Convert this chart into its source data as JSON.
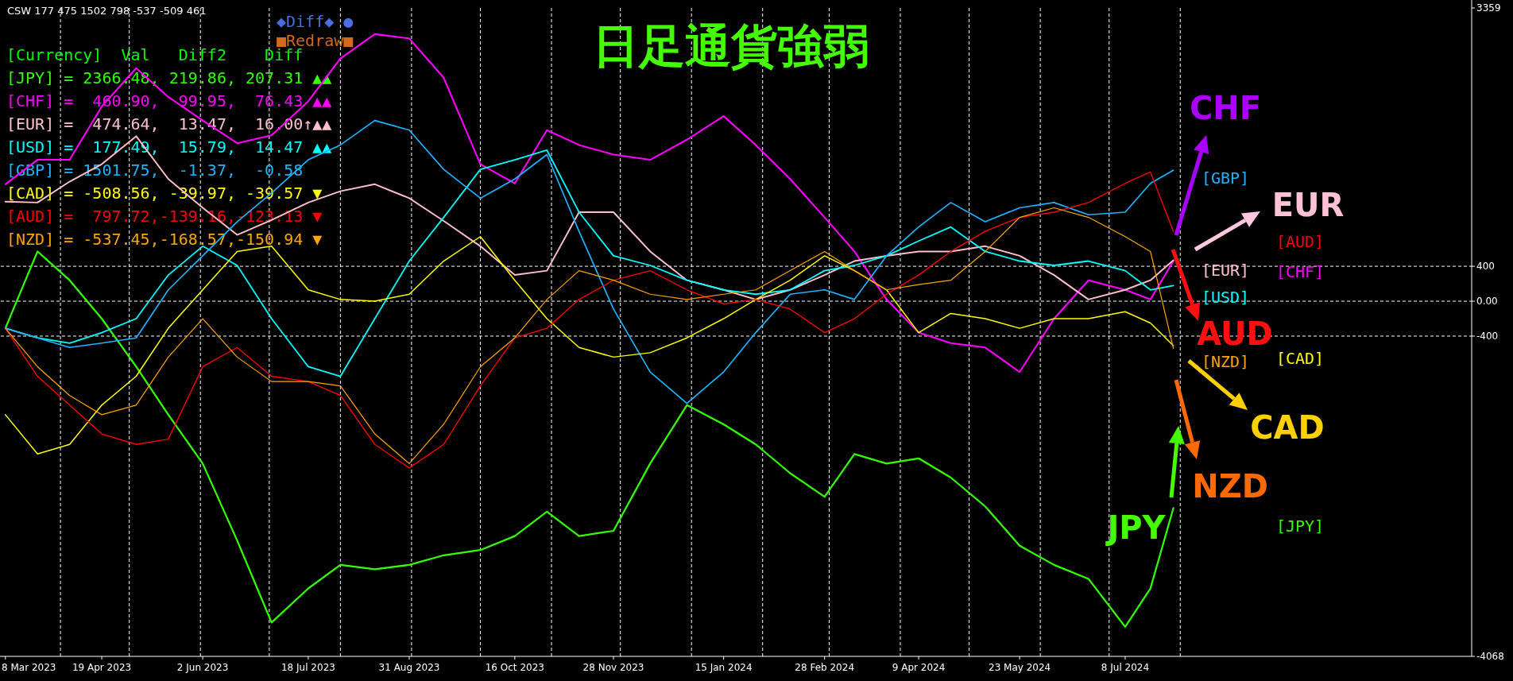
{
  "chart_data": {
    "type": "line",
    "title": "日足通貨強弱",
    "legend_title": "[Currency]  Val   Diff2    Diff",
    "legend": "top left",
    "grid": "y",
    "line_style": "solid",
    "marker": "none",
    "x": [
      "2023-03-08",
      "2023-03-22",
      "2023-04-05",
      "2023-04-19",
      "2023-05-04",
      "2023-05-18",
      "2023-06-02",
      "2023-06-17",
      "2023-07-02",
      "2023-07-18",
      "2023-08-01",
      "2023-08-16",
      "2023-08-31",
      "2023-09-15",
      "2023-10-01",
      "2023-10-16",
      "2023-10-30",
      "2023-11-13",
      "2023-11-28",
      "2023-12-14",
      "2023-12-30",
      "2024-01-15",
      "2024-01-29",
      "2024-02-13",
      "2024-02-28",
      "2024-03-12",
      "2024-03-26",
      "2024-04-09",
      "2024-04-23",
      "2024-05-08",
      "2024-05-23",
      "2024-06-07",
      "2024-06-22",
      "2024-07-08",
      "2024-07-19",
      "2024-07-29"
    ],
    "series": [
      {
        "name": "[JPY] = 2366.48, 219.86, 207.31 ▲▲",
        "color": "#33ff00",
        "values": [
          -310,
          570,
          240,
          -200,
          -750,
          -1300,
          -1860,
          -2740,
          -3680,
          -3290,
          -3020,
          -3070,
          -3020,
          -2910,
          -2850,
          -2690,
          -2410,
          -2690,
          -2630,
          -1860,
          -1190,
          -1410,
          -1640,
          -1970,
          -2240,
          -1750,
          -1860,
          -1800,
          -2020,
          -2350,
          -2800,
          -3020,
          -3180,
          -3730,
          -3290,
          -2370
        ]
      },
      {
        "name": "[CHF] =  460.90,  99.95,  76.43 ▲▲",
        "color": "#ff00ff",
        "values": [
          1340,
          1620,
          1620,
          2230,
          2670,
          2340,
          2070,
          1810,
          1900,
          2290,
          2780,
          3060,
          3010,
          2560,
          1570,
          1350,
          1960,
          1790,
          1680,
          1620,
          1850,
          2120,
          1790,
          1400,
          960,
          570,
          20,
          -360,
          -480,
          -530,
          -810,
          -200,
          240,
          130,
          20,
          460
        ]
      },
      {
        "name": "[EUR] =  474.64,  13.47,  16.00↑▲▲",
        "color": "#ffc0cb",
        "values": [
          1140,
          1130,
          1370,
          1570,
          1890,
          1400,
          1070,
          760,
          930,
          1130,
          1260,
          1340,
          1180,
          920,
          630,
          300,
          350,
          1020,
          1020,
          570,
          240,
          130,
          20,
          130,
          300,
          460,
          520,
          570,
          570,
          630,
          520,
          300,
          20,
          130,
          240,
          470
        ]
      },
      {
        "name": "[USD] =  177.49,  15.79,  14.47 ▲▲",
        "color": "#00ffff",
        "values": [
          -310,
          -420,
          -480,
          -360,
          -200,
          300,
          630,
          410,
          -200,
          -750,
          -860,
          -200,
          460,
          960,
          1510,
          1620,
          1730,
          1020,
          520,
          410,
          240,
          130,
          80,
          130,
          350,
          410,
          520,
          690,
          850,
          570,
          460,
          410,
          460,
          350,
          130,
          180
        ]
      },
      {
        "name": "[GBP] = 1501.75,  -1.37,  -0.58",
        "color": "#1eb4ff",
        "values": [
          -310,
          -420,
          -530,
          -480,
          -420,
          130,
          520,
          910,
          1240,
          1620,
          1790,
          2070,
          1960,
          1510,
          1180,
          1400,
          1680,
          800,
          -90,
          -810,
          -1170,
          -810,
          -360,
          80,
          130,
          20,
          520,
          850,
          1130,
          910,
          1070,
          1130,
          990,
          1020,
          1350,
          1500
        ]
      },
      {
        "name": "[CAD] = -508.56, -39.97, -39.57 ▼",
        "color": "#ffff00",
        "values": [
          -1300,
          -1750,
          -1640,
          -1190,
          -860,
          -310,
          130,
          570,
          630,
          130,
          20,
          0,
          80,
          460,
          740,
          240,
          -200,
          -530,
          -640,
          -590,
          -420,
          -200,
          20,
          240,
          520,
          350,
          130,
          -360,
          -140,
          -200,
          -310,
          -200,
          -200,
          -120,
          -250,
          -510
        ]
      },
      {
        "name": "[AUD] =  797.72,-139.16,-123.13 ▼",
        "color": "#ff0000",
        "values": [
          -310,
          -860,
          -1190,
          -1520,
          -1640,
          -1580,
          -750,
          -530,
          -860,
          -920,
          -1080,
          -1640,
          -1910,
          -1640,
          -970,
          -420,
          -310,
          20,
          240,
          350,
          130,
          -30,
          20,
          -90,
          -360,
          -200,
          80,
          300,
          570,
          800,
          960,
          1020,
          1130,
          1350,
          1480,
          800
        ]
      },
      {
        "name": "[NZD] = -537.45,-168.57,-150.94 ▼",
        "color": "#ffa500",
        "values": [
          -310,
          -750,
          -1080,
          -1300,
          -1190,
          -640,
          -200,
          -640,
          -920,
          -920,
          -970,
          -1520,
          -1860,
          -1410,
          -750,
          -420,
          20,
          350,
          240,
          80,
          20,
          80,
          130,
          350,
          570,
          350,
          130,
          190,
          240,
          570,
          960,
          1070,
          960,
          740,
          570,
          -540
        ]
      }
    ],
    "xlim": [
      "2023-03-06",
      "2024-12-06"
    ],
    "xticks": [
      {
        "value": "2023-03-08",
        "label": "8 Mar 2023"
      },
      {
        "value": "2023-04-19",
        "label": "19 Apr 2023"
      },
      {
        "value": "2023-06-02",
        "label": "2 Jun 2023"
      },
      {
        "value": "2023-07-18",
        "label": "18 Jul 2023"
      },
      {
        "value": "2023-08-31",
        "label": "31 Aug 2023"
      },
      {
        "value": "2023-10-16",
        "label": "16 Oct 2023"
      },
      {
        "value": "2023-11-28",
        "label": "28 Nov 2023"
      },
      {
        "value": "2024-01-15",
        "label": "15 Jan 2024"
      },
      {
        "value": "2024-02-28",
        "label": "28 Feb 2024"
      },
      {
        "value": "2024-04-09",
        "label": "9 Apr 2024"
      },
      {
        "value": "2024-05-23",
        "label": "23 May 2024"
      },
      {
        "value": "2024-07-08",
        "label": "8 Jul 2024"
      }
    ],
    "ylim": [
      -4068,
      3359
    ],
    "yticks": [
      3359,
      400,
      {
        "value": 0,
        "label": "0.00"
      },
      -400,
      -4068
    ],
    "ref_lines": [
      {
        "axis": "x",
        "value": "2023-04-01",
        "color": "#ffffff",
        "line_style": "dashed"
      },
      {
        "axis": "x",
        "value": "2023-05-01",
        "color": "#ffffff",
        "line_style": "dashed"
      },
      {
        "axis": "x",
        "value": "2023-06-01",
        "color": "#ffffff",
        "line_style": "dashed"
      },
      {
        "axis": "x",
        "value": "2023-07-01",
        "color": "#ffffff",
        "line_style": "dashed"
      },
      {
        "axis": "x",
        "value": "2023-08-01",
        "color": "#ffffff",
        "line_style": "dashed"
      },
      {
        "axis": "x",
        "value": "2023-09-01",
        "color": "#ffffff",
        "line_style": "dashed"
      },
      {
        "axis": "x",
        "value": "2023-10-01",
        "color": "#ffffff",
        "line_style": "dashed"
      },
      {
        "axis": "x",
        "value": "2023-11-01",
        "color": "#ffffff",
        "line_style": "dashed"
      },
      {
        "axis": "x",
        "value": "2023-12-01",
        "color": "#ffffff",
        "line_style": "dashed"
      },
      {
        "axis": "x",
        "value": "2024-01-01",
        "color": "#ffffff",
        "line_style": "dashed"
      },
      {
        "axis": "x",
        "value": "2024-02-01",
        "color": "#ffffff",
        "line_style": "dashed"
      },
      {
        "axis": "x",
        "value": "2024-03-01",
        "color": "#ffffff",
        "line_style": "dashed"
      },
      {
        "axis": "x",
        "value": "2024-04-01",
        "color": "#ffffff",
        "line_style": "dashed"
      },
      {
        "axis": "x",
        "value": "2024-05-01",
        "color": "#ffffff",
        "line_style": "dashed"
      },
      {
        "axis": "x",
        "value": "2024-06-01",
        "color": "#ffffff",
        "line_style": "dashed"
      },
      {
        "axis": "x",
        "value": "2024-07-01",
        "color": "#ffffff",
        "line_style": "dashed"
      },
      {
        "axis": "x",
        "value": "2024-08-01",
        "color": "#ffffff",
        "line_style": "dashed"
      }
    ],
    "annotations": [
      "CSW 177 475 1502 798 -537 -509 461",
      "◆Diff◆ ●",
      "■Redraw■",
      "CHF",
      "EUR",
      "AUD",
      "CAD",
      "NZD",
      "JPY",
      "[GBP]",
      "[AUD]",
      "[EUR]",
      "[CHF]",
      "[USD]",
      "[NZD]",
      "[CAD]",
      "[JPY]"
    ]
  }
}
